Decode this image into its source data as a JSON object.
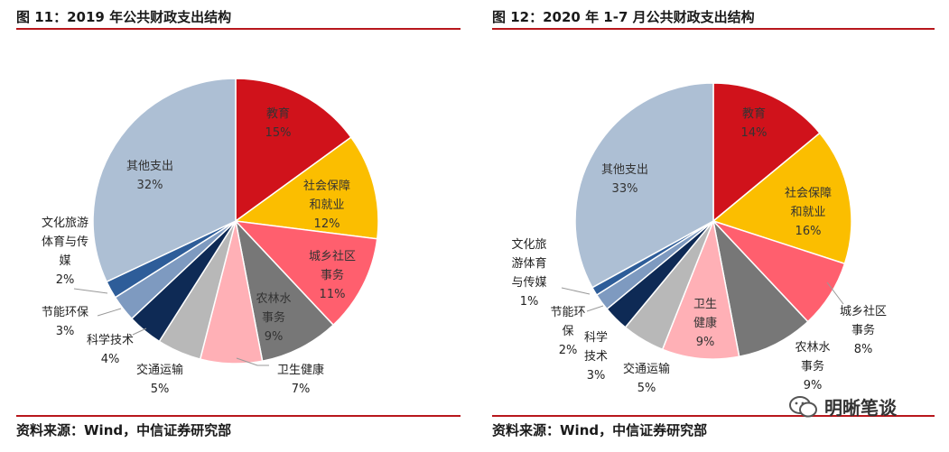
{
  "left_figure": {
    "title": "图 11：2019 年公共财政支出结构",
    "source": "资料来源：Wind，中信证券研究部"
  },
  "right_figure": {
    "title": "图 12：2020 年 1-7 月公共财政支出结构",
    "source": "资料来源：Wind，中信证券研究部"
  },
  "watermark": {
    "text": "明晰笔谈",
    "icon": "wechat-icon"
  },
  "chart_data": [
    {
      "type": "pie",
      "title": "图 11：2019 年公共财政支出结构",
      "slices": [
        {
          "label": "教育",
          "value": 15,
          "pct": "15%",
          "color": "#d0121b"
        },
        {
          "label": "社会保障和就业",
          "value": 12,
          "pct": "12%",
          "color": "#fbbe00"
        },
        {
          "label": "城乡社区事务",
          "value": 11,
          "pct": "11%",
          "color": "#ff5f6e"
        },
        {
          "label": "农林水事务",
          "value": 9,
          "pct": "9%",
          "color": "#777777"
        },
        {
          "label": "卫生健康",
          "value": 7,
          "pct": "7%",
          "color": "#ffb0b6"
        },
        {
          "label": "交通运输",
          "value": 5,
          "pct": "5%",
          "color": "#b8b8b8"
        },
        {
          "label": "科学技术",
          "value": 4,
          "pct": "4%",
          "color": "#0e2a55"
        },
        {
          "label": "节能环保",
          "value": 3,
          "pct": "3%",
          "color": "#7e9ac0"
        },
        {
          "label": "文化旅游体育与传媒",
          "value": 2,
          "pct": "2%",
          "color": "#2e5d99"
        },
        {
          "label": "其他支出",
          "value": 32,
          "pct": "32%",
          "color": "#adbfd4"
        }
      ]
    },
    {
      "type": "pie",
      "title": "图 12：2020 年 1-7 月公共财政支出结构",
      "slices": [
        {
          "label": "教育",
          "value": 14,
          "pct": "14%",
          "color": "#d0121b"
        },
        {
          "label": "社会保障和就业",
          "value": 16,
          "pct": "16%",
          "color": "#fbbe00"
        },
        {
          "label": "城乡社区事务",
          "value": 8,
          "pct": "8%",
          "color": "#ff5f6e"
        },
        {
          "label": "农林水事务",
          "value": 9,
          "pct": "9%",
          "color": "#777777"
        },
        {
          "label": "卫生健康",
          "value": 9,
          "pct": "9%",
          "color": "#ffb0b6"
        },
        {
          "label": "交通运输",
          "value": 5,
          "pct": "5%",
          "color": "#b8b8b8"
        },
        {
          "label": "科学技术",
          "value": 3,
          "pct": "3%",
          "color": "#0e2a55"
        },
        {
          "label": "节能环保",
          "value": 2,
          "pct": "2%",
          "color": "#7e9ac0"
        },
        {
          "label": "文化旅游体育与传媒",
          "value": 1,
          "pct": "1%",
          "color": "#2e5d99"
        },
        {
          "label": "其他支出",
          "value": 33,
          "pct": "33%",
          "color": "#adbfd4"
        }
      ]
    }
  ]
}
